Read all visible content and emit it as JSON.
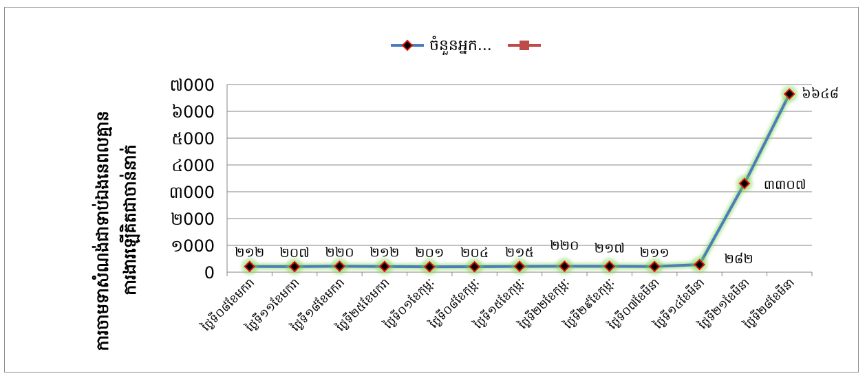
{
  "chart_data": {
    "type": "line",
    "title": "",
    "ylabel_lines": [
      "ការចាមទាសំណង់ជាទាប់ឯងនេពលគ្មាន",
      "ការងារឡើគិតជាចាន់នាក់"
    ],
    "ylim": [
      0,
      7000
    ],
    "yticks": [
      0,
      1000,
      2000,
      3000,
      4000,
      5000,
      6000,
      7000
    ],
    "ytick_labels": [
      "0",
      "១000",
      "២000",
      "៣000",
      "៤000",
      "៥000",
      "៦000",
      "៧000"
    ],
    "grid": true,
    "legend_position": "top",
    "legend": [
      {
        "label": "ចំនួនអ្នក...",
        "color": "#4a7ebb",
        "marker": "diamond"
      },
      {
        "label": "",
        "color": "#be4b48",
        "marker": "square"
      }
    ],
    "categories": [
      "ថ្ងៃទី០៨ខែមករា",
      "ថ្ងៃទី១១ខែមករា",
      "ថ្ងៃទី១៨ខែមករា",
      "ថ្ងៃទី២៥ខែមករា",
      "ថ្ងៃទី០១ខែកុម្ភៈ",
      "ថ្ងៃទី០៨ខែកុម្ភៈ",
      "ថ្ងៃទី១៥ខែកុម្ភៈ",
      "ថ្ងៃទី២២ខែកុម្ភៈ",
      "ថ្ងៃទី២៩ខែកុម្ភៈ",
      "ថ្ងៃទី០៧ខែមីនា",
      "ថ្ងៃទី១៤ខែមីនា",
      "ថ្ងៃទី២១ខែមីនា",
      "ថ្ងៃទី២៨ខែមីនា"
    ],
    "series": [
      {
        "name": "ចំនួនអ្នក...",
        "color": "#4a7ebb",
        "values": [
          212,
          207,
          220,
          212,
          201,
          204,
          215,
          220,
          217,
          211,
          282,
          3307,
          6648
        ],
        "data_labels": [
          "២១២",
          "២០៧",
          "២២០",
          "២១២",
          "២០១",
          "២០៤",
          "២១៥",
          "២២០",
          "២១៧",
          "២១១",
          "២៨២",
          "៣៣០៧",
          "៦៦៤៨"
        ]
      }
    ]
  }
}
